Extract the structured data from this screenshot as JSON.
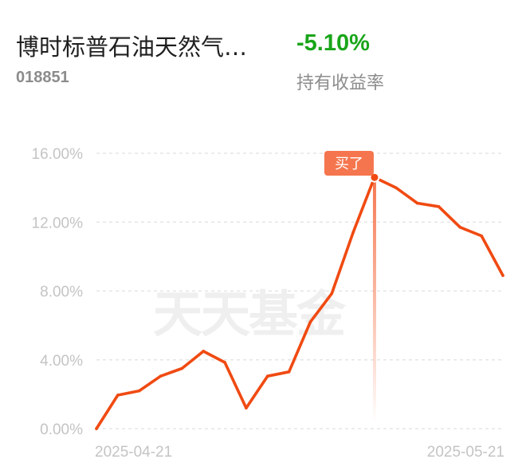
{
  "fund": {
    "name": "博时标普石油天然气…",
    "code": "018851"
  },
  "holding": {
    "return_value": "-5.10%",
    "return_label": "持有收益率"
  },
  "watermark": "天天基金",
  "colors": {
    "line": "#f04a12",
    "marker_bg": "#f5764e",
    "grid": "#e6e6e6",
    "return_positive_green": "#1aa51a"
  },
  "chart_data": {
    "type": "line",
    "title": "",
    "xlabel": "",
    "ylabel": "",
    "ylim": [
      0,
      16
    ],
    "yticks": [
      {
        "value": 0,
        "label": "0.00%"
      },
      {
        "value": 4,
        "label": "4.00%"
      },
      {
        "value": 8,
        "label": "8.00%"
      },
      {
        "value": 12,
        "label": "12.00%"
      },
      {
        "value": 16,
        "label": "16.00%"
      }
    ],
    "x_labels": [
      {
        "index": 0,
        "label": "2025-04-21"
      },
      {
        "index": 19,
        "label": "2025-05-21"
      }
    ],
    "grid": true,
    "series": [
      {
        "values": [
          0.0,
          1.95,
          2.2,
          3.05,
          3.5,
          4.5,
          3.85,
          1.2,
          3.05,
          3.3,
          6.2,
          7.85,
          11.4,
          14.6,
          14.0,
          13.1,
          12.9,
          11.7,
          11.2,
          8.9
        ]
      }
    ],
    "annotation": {
      "index": 13,
      "value": 14.6,
      "label": "买了"
    }
  }
}
